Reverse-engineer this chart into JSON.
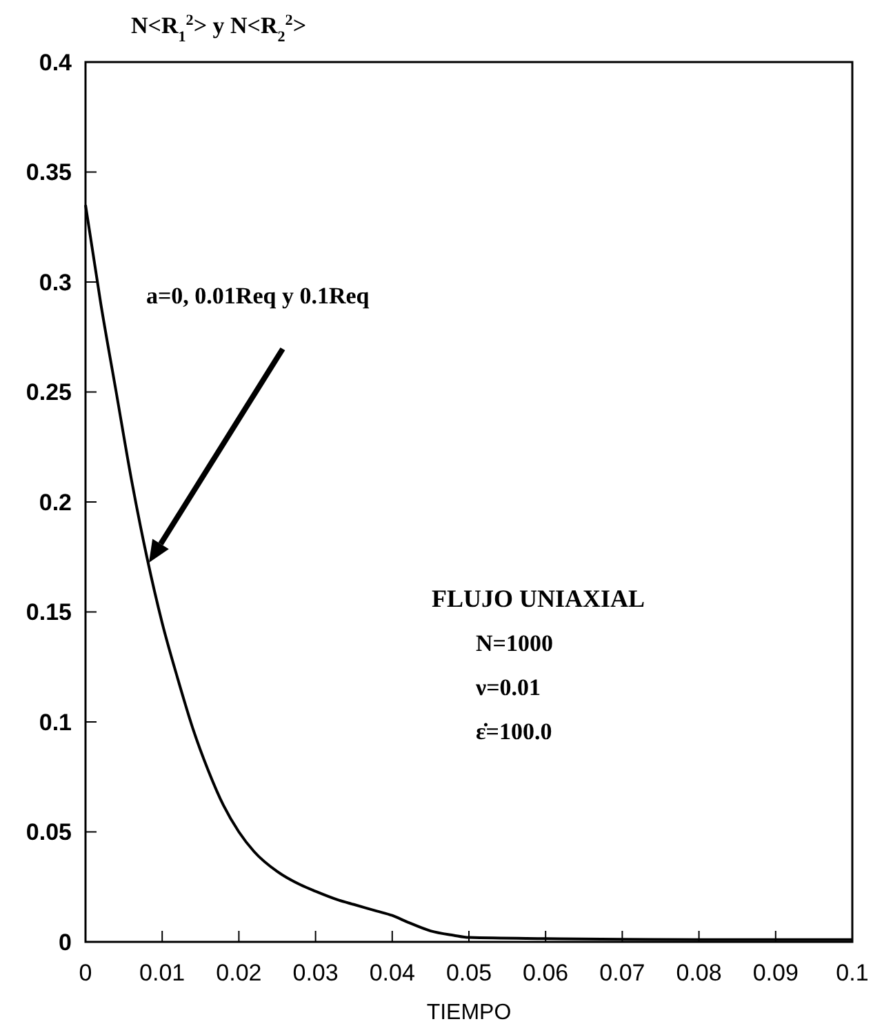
{
  "chart_data": {
    "type": "line",
    "title": "N<R$_{1}$$^{2}$> y N<R$_{2}$$^{2}$>",
    "xlabel": "TIEMPO",
    "x": [
      0,
      0.002,
      0.004,
      0.006,
      0.008,
      0.01,
      0.012,
      0.014,
      0.016,
      0.018,
      0.02,
      0.022,
      0.025,
      0.028,
      0.03,
      0.033,
      0.035,
      0.038,
      0.04,
      0.042,
      0.045,
      0.048,
      0.05,
      0.06,
      0.07,
      0.08,
      0.09,
      0.1
    ],
    "series": [
      {
        "color": "#000000",
        "values": [
          0.335,
          0.29,
          0.25,
          0.21,
          0.175,
          0.145,
          0.12,
          0.097,
          0.078,
          0.062,
          0.05,
          0.041,
          0.032,
          0.026,
          0.023,
          0.019,
          0.017,
          0.014,
          0.012,
          0.009,
          0.005,
          0.003,
          0.002,
          0.0015,
          0.0012,
          0.001,
          0.001,
          0.001
        ]
      }
    ],
    "xlim": [
      0,
      0.1
    ],
    "ylim": [
      0,
      0.4
    ],
    "xticks": [
      0,
      0.01,
      0.02,
      0.03,
      0.04,
      0.05,
      0.06,
      0.07,
      0.08,
      0.09,
      0.1
    ],
    "yticks": [
      0,
      0.05,
      0.1,
      0.15,
      0.2,
      0.25,
      0.3,
      0.35,
      0.4
    ],
    "annotations": [
      "a=0, 0.01Req y 0.1Req",
      "FLUJO UNIAXIAL",
      "N=1000",
      "ν=0.01",
      "ε̇=100.0"
    ],
    "grid": false,
    "marker": "none",
    "line_style": "solid"
  }
}
